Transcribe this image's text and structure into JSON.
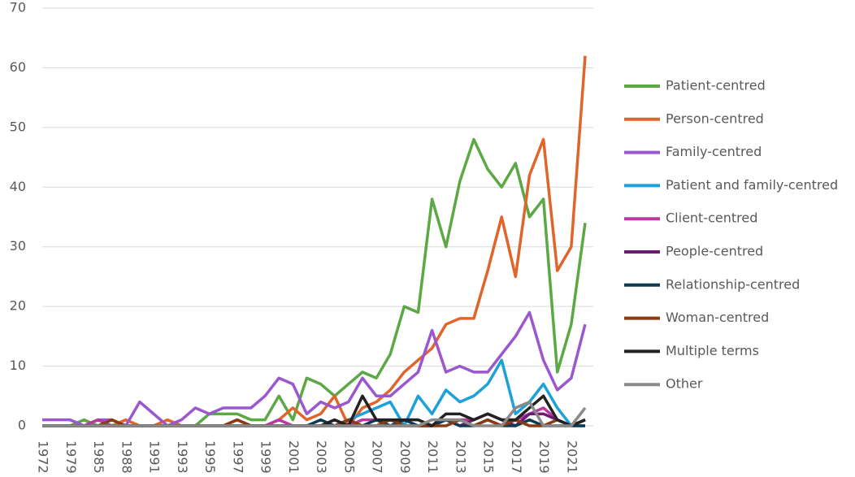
{
  "chart_data": {
    "type": "line",
    "categories": [
      "1972",
      null,
      "1979",
      null,
      "1985",
      null,
      "1988",
      null,
      "1991",
      null,
      "1993",
      null,
      "1995",
      null,
      "1997",
      null,
      "1999",
      null,
      "2001",
      null,
      "2003",
      null,
      "2005",
      null,
      "2007",
      null,
      "2009",
      null,
      "2011",
      null,
      "2013",
      null,
      "2015",
      null,
      "2017",
      null,
      "2019",
      null,
      "2021",
      null
    ],
    "ylim": [
      0,
      70
    ],
    "yticks": [
      0,
      10,
      20,
      30,
      40,
      50,
      60,
      70
    ],
    "grid": true,
    "legend": "right",
    "series": [
      {
        "name": "Patient-centred",
        "color": "#5ca845",
        "values": [
          0,
          0,
          0,
          1,
          0,
          0,
          0,
          0,
          0,
          0,
          0,
          0,
          2,
          2,
          2,
          1,
          1,
          5,
          1,
          8,
          7,
          5,
          7,
          9,
          8,
          12,
          20,
          19,
          38,
          30,
          41,
          48,
          43,
          40,
          44,
          35,
          38,
          9,
          17,
          34
        ]
      },
      {
        "name": "Person-centred",
        "color": "#e0652a",
        "values": [
          0,
          0,
          0,
          0,
          1,
          0,
          1,
          0,
          0,
          1,
          0,
          0,
          0,
          0,
          0,
          0,
          0,
          1,
          3,
          1,
          2,
          5,
          0,
          3,
          4,
          6,
          9,
          11,
          13,
          17,
          18,
          18,
          26,
          35,
          25,
          42,
          48,
          26,
          30,
          62
        ]
      },
      {
        "name": "Family-centred",
        "color": "#9a57d0",
        "values": [
          1,
          1,
          1,
          0,
          1,
          1,
          0,
          4,
          2,
          0,
          1,
          3,
          2,
          3,
          3,
          3,
          5,
          8,
          7,
          2,
          4,
          3,
          4,
          8,
          5,
          5,
          7,
          9,
          16,
          9,
          10,
          9,
          9,
          12,
          15,
          19,
          11,
          6,
          8,
          17
        ]
      },
      {
        "name": "Patient and family-centred",
        "color": "#1ea0d8",
        "values": [
          0,
          0,
          0,
          0,
          0,
          0,
          0,
          0,
          0,
          0,
          0,
          0,
          0,
          0,
          0,
          0,
          0,
          0,
          0,
          0,
          0,
          0,
          1,
          2,
          3,
          4,
          0,
          5,
          2,
          6,
          4,
          5,
          7,
          11,
          2,
          4,
          7,
          3,
          0,
          0
        ]
      },
      {
        "name": "Client-centred",
        "color": "#b8399f",
        "values": [
          0,
          0,
          0,
          0,
          1,
          0,
          0,
          0,
          0,
          0,
          0,
          0,
          0,
          0,
          1,
          0,
          0,
          1,
          0,
          0,
          0,
          1,
          0,
          1,
          1,
          0,
          1,
          1,
          0,
          1,
          1,
          1,
          2,
          1,
          1,
          2,
          3,
          1,
          0,
          1
        ]
      },
      {
        "name": "People-centred",
        "color": "#6b1c70",
        "values": [
          0,
          0,
          0,
          0,
          0,
          0,
          0,
          0,
          0,
          0,
          0,
          0,
          0,
          0,
          0,
          0,
          0,
          0,
          0,
          0,
          0,
          0,
          0,
          0,
          0,
          0,
          0,
          0,
          0,
          1,
          0,
          1,
          2,
          1,
          0,
          2,
          2,
          1,
          0,
          1
        ]
      },
      {
        "name": "Relationship-centred",
        "color": "#0e3a52",
        "values": [
          0,
          0,
          0,
          0,
          0,
          0,
          0,
          0,
          0,
          0,
          0,
          0,
          0,
          0,
          0,
          0,
          0,
          0,
          0,
          0,
          1,
          0,
          0,
          0,
          1,
          0,
          1,
          0,
          0,
          1,
          0,
          0,
          1,
          0,
          0,
          1,
          0,
          0,
          0,
          0
        ]
      },
      {
        "name": "Woman-centred",
        "color": "#8b3b13",
        "values": [
          0,
          0,
          0,
          0,
          0,
          1,
          0,
          0,
          0,
          0,
          0,
          0,
          0,
          0,
          1,
          0,
          0,
          0,
          0,
          0,
          0,
          0,
          1,
          0,
          0,
          1,
          0,
          0,
          0,
          0,
          1,
          0,
          1,
          0,
          1,
          0,
          0,
          1,
          0,
          1
        ]
      },
      {
        "name": "Multiple terms",
        "color": "#222222",
        "values": [
          0,
          0,
          0,
          0,
          0,
          0,
          0,
          0,
          0,
          0,
          0,
          0,
          0,
          0,
          0,
          0,
          0,
          0,
          0,
          0,
          0,
          1,
          0,
          5,
          1,
          1,
          1,
          1,
          0,
          2,
          2,
          1,
          2,
          1,
          1,
          3,
          5,
          1,
          0,
          1
        ]
      },
      {
        "name": "Other",
        "color": "#8a8a8a",
        "values": [
          0,
          0,
          0,
          0,
          0,
          0,
          0,
          0,
          0,
          0,
          0,
          0,
          0,
          0,
          0,
          0,
          0,
          0,
          0,
          0,
          0,
          0,
          0,
          0,
          0,
          0,
          0,
          0,
          1,
          1,
          1,
          0,
          0,
          0,
          3,
          4,
          0,
          0,
          0,
          3
        ]
      }
    ]
  }
}
